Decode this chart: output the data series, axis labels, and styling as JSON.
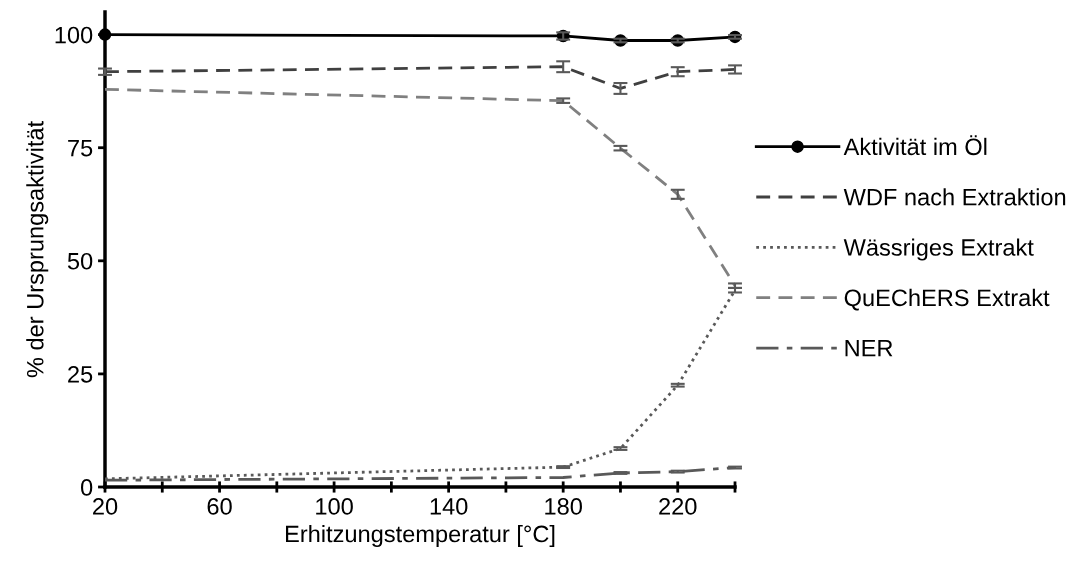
{
  "chart_data": {
    "type": "line",
    "xlabel": "Erhitzungstemperatur [°C]",
    "ylabel": "% der Ursprungsaktivität",
    "x": [
      20,
      180,
      200,
      220,
      240
    ],
    "series": [
      {
        "name": "Aktivität im Öl",
        "color": "#000000",
        "marker": "circle",
        "line_style": "solid",
        "values": [
          100,
          99.7,
          98.7,
          98.7,
          99.5
        ],
        "errors": [
          null,
          0.8,
          0.4,
          0.4,
          0.4
        ]
      },
      {
        "name": "WDF nach Extraktion",
        "color": "#404040",
        "line_style": "dashed",
        "values": [
          91.8,
          92.9,
          88.1,
          91.8,
          92.3
        ],
        "errors": [
          0.7,
          1.2,
          1.2,
          1.0,
          0.9
        ]
      },
      {
        "name": "Wässriges Extrakt",
        "color": "#595959",
        "line_style": "dotted",
        "values": [
          1.8,
          4.4,
          8.5,
          22.5,
          43.5
        ],
        "errors": [
          null,
          0.2,
          0.3,
          0.3,
          0.5
        ]
      },
      {
        "name": "QuEChERS Extrakt",
        "color": "#808080",
        "line_style": "dashed",
        "values": [
          87.9,
          85.4,
          74.9,
          64.7,
          44.5
        ],
        "errors": [
          null,
          0.5,
          0.5,
          1.0,
          0.5
        ]
      },
      {
        "name": "NER",
        "color": "#595959",
        "line_style": "dashdot",
        "values": [
          1.5,
          2.1,
          3.1,
          3.4,
          4.3
        ],
        "errors": [
          null,
          null,
          0.2,
          0.2,
          0.2
        ]
      }
    ],
    "xlim": [
      20,
      240
    ],
    "xticks": [
      20,
      {
        "value": 40,
        "label": null
      },
      60,
      {
        "value": 80,
        "label": null
      },
      100,
      {
        "value": 120,
        "label": null
      },
      140,
      {
        "value": 160,
        "label": null
      },
      180,
      {
        "value": 200,
        "label": null
      },
      220,
      {
        "value": 240,
        "label": null
      }
    ],
    "ylim": [
      0,
      105
    ],
    "yticks": [
      0,
      25,
      50,
      75,
      100
    ],
    "grid": false,
    "legend": "right"
  }
}
